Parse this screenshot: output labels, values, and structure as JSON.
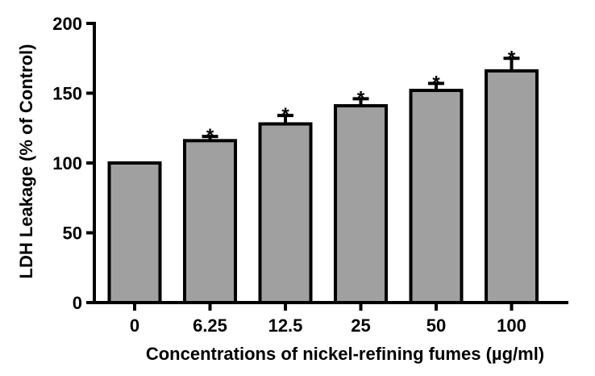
{
  "chart_data": {
    "type": "bar",
    "title": "",
    "xlabel": "Concentrations of nickel-refining fumes (µg/ml)",
    "ylabel": "LDH Leakage (% of Control)",
    "categories": [
      "0",
      "6.25",
      "12.5",
      "25",
      "50",
      "100"
    ],
    "values": [
      100,
      116,
      128,
      141,
      152,
      166
    ],
    "error_upper": [
      0,
      3,
      6,
      5,
      5,
      9
    ],
    "significance": [
      "",
      "*",
      "*",
      "*",
      "*",
      "*"
    ],
    "ylim": [
      0,
      200
    ],
    "yticks": [
      0,
      50,
      100,
      150,
      200
    ],
    "bar_color": "#a0a0a0",
    "grid": false,
    "legend": "none"
  }
}
